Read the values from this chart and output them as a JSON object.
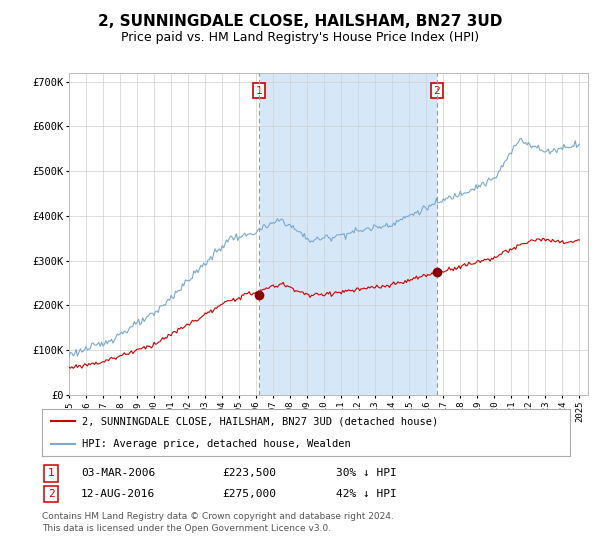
{
  "title": "2, SUNNINGDALE CLOSE, HAILSHAM, BN27 3UD",
  "subtitle": "Price paid vs. HM Land Registry's House Price Index (HPI)",
  "ylim": [
    0,
    720000
  ],
  "yticks": [
    0,
    100000,
    200000,
    300000,
    400000,
    500000,
    600000,
    700000
  ],
  "ytick_labels": [
    "£0",
    "£100K",
    "£200K",
    "£300K",
    "£400K",
    "£500K",
    "£600K",
    "£700K"
  ],
  "hpi_color": "#7aa8d2",
  "hpi_fill_between_color": "#d6e8f7",
  "price_color": "#cc0000",
  "marker_color": "#880000",
  "vline_color": "#999999",
  "grid_color": "#d0d0d0",
  "background_color": "#ffffff",
  "purchase1_date": 2006.17,
  "purchase1_price": 223500,
  "purchase2_date": 2016.62,
  "purchase2_price": 275000,
  "legend_label1": "2, SUNNINGDALE CLOSE, HAILSHAM, BN27 3UD (detached house)",
  "legend_label2": "HPI: Average price, detached house, Wealden",
  "table_row1_num": "1",
  "table_row1_date": "03-MAR-2006",
  "table_row1_price": "£223,500",
  "table_row1_hpi": "30% ↓ HPI",
  "table_row2_num": "2",
  "table_row2_date": "12-AUG-2016",
  "table_row2_price": "£275,000",
  "table_row2_hpi": "42% ↓ HPI",
  "footnote_line1": "Contains HM Land Registry data © Crown copyright and database right 2024.",
  "footnote_line2": "This data is licensed under the Open Government Licence v3.0."
}
